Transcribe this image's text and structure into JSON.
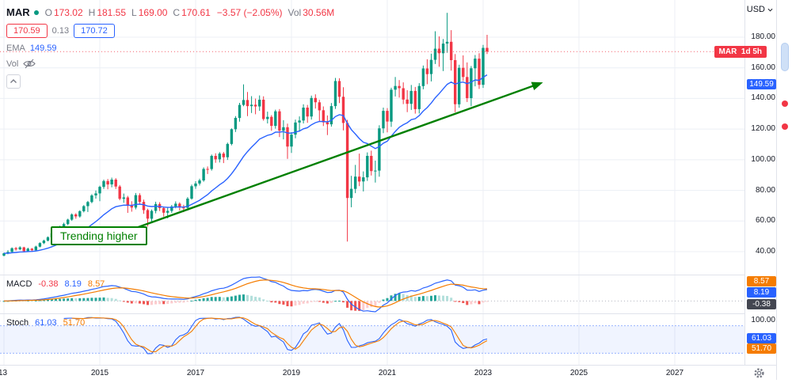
{
  "legend": {
    "ticker": "MAR",
    "o_label": "O",
    "o": "173.02",
    "h_label": "H",
    "h": "181.55",
    "l_label": "L",
    "l": "169.00",
    "c_label": "C",
    "c": "170.61",
    "change": "−3.57 (−2.05%)",
    "vol_label": "Vol",
    "vol": "30.56M",
    "bid": "170.59",
    "spread": "0.13",
    "ask": "170.72",
    "ema_label": "EMA",
    "ema_value": "149.59",
    "vol_indicator_label": "Vol"
  },
  "annotations": {
    "trend_label": "Trending higher"
  },
  "price_axis": {
    "currency": "USD",
    "labels": [
      "180.00",
      "160.00",
      "140.00",
      "120.00",
      "100.00",
      "80.00",
      "60.00",
      "40.00"
    ],
    "last_badge": "MAR  1d 5h",
    "ema_badge": "149.59"
  },
  "macd": {
    "label": "MACD",
    "hist": "-0.38",
    "macd": "8.19",
    "signal": "8.57"
  },
  "stoch": {
    "label": "Stoch",
    "k": "61.03",
    "d": "51.70",
    "scale_top": "100.00"
  },
  "time_axis": {
    "labels": [
      "13",
      "2015",
      "2017",
      "2019",
      "2021",
      "2023",
      "2025",
      "2027"
    ]
  },
  "icons": {
    "vol_hidden": "eye-slash-icon",
    "legend_collapse": "chevron-up-icon",
    "currency_menu": "chevron-down-icon",
    "axis_settings": "gear-icon"
  },
  "colors": {
    "up": "#089981",
    "down": "#f23645",
    "ema": "#2962ff",
    "macd_line": "#2962ff",
    "signal_line": "#f57c00",
    "stoch_k": "#2962ff",
    "stoch_d": "#f57c00",
    "hist_pos": "#26a69a",
    "hist_pos_weak": "#b2dfdb",
    "hist_neg": "#ef5350",
    "hist_neg_weak": "#fccbcd",
    "trend": "#008000",
    "grid": "#eceff5",
    "separator": "#e0e3eb"
  },
  "chart_data": {
    "type": "candlestick",
    "title": "MAR monthly candlestick chart with EMA, MACD and Stochastic",
    "interval": "1M",
    "start_year": 2013,
    "x_visible_range_years": [
      2013,
      2028.5
    ],
    "price_axis_range": [
      26,
      199
    ],
    "price_gridlines": [
      40,
      60,
      80,
      100,
      120,
      140,
      160,
      180
    ],
    "last_price": 170.61,
    "candles": [
      [
        37.4,
        39.4,
        36.9,
        38.9
      ],
      [
        38.9,
        41.0,
        38.3,
        39.8
      ],
      [
        39.8,
        42.8,
        39.5,
        42.2
      ],
      [
        42.2,
        43.1,
        40.6,
        41.5
      ],
      [
        41.5,
        43.5,
        40.9,
        42.8
      ],
      [
        42.8,
        43.2,
        39.6,
        40.3
      ],
      [
        40.3,
        42.6,
        39.8,
        41.9
      ],
      [
        41.9,
        42.4,
        39.9,
        40.9
      ],
      [
        40.9,
        43.9,
        40.5,
        43.3
      ],
      [
        43.3,
        46.1,
        42.8,
        45.6
      ],
      [
        45.6,
        47.8,
        44.9,
        47.2
      ],
      [
        47.2,
        49.9,
        46.7,
        49.4
      ],
      [
        49.4,
        52.6,
        48.6,
        52.0
      ],
      [
        52.0,
        54.2,
        50.6,
        53.5
      ],
      [
        53.5,
        56.9,
        52.8,
        56.2
      ],
      [
        56.2,
        58.9,
        55.0,
        58.0
      ],
      [
        58.0,
        61.5,
        57.2,
        60.9
      ],
      [
        60.9,
        65.0,
        60.1,
        64.3
      ],
      [
        64.3,
        65.1,
        61.5,
        63.0
      ],
      [
        63.0,
        67.0,
        62.2,
        66.4
      ],
      [
        66.4,
        70.4,
        65.6,
        69.7
      ],
      [
        69.7,
        73.1,
        65.9,
        72.4
      ],
      [
        72.4,
        77.5,
        71.6,
        76.7
      ],
      [
        76.7,
        79.9,
        74.6,
        78.0
      ],
      [
        78.0,
        83.1,
        72.9,
        82.3
      ],
      [
        82.3,
        87.0,
        80.9,
        86.1
      ],
      [
        86.1,
        87.4,
        80.7,
        83.9
      ],
      [
        83.9,
        88.3,
        82.0,
        87.0
      ],
      [
        87.0,
        88.0,
        80.9,
        82.5
      ],
      [
        82.5,
        83.5,
        73.6,
        74.5
      ],
      [
        74.5,
        77.9,
        71.9,
        75.4
      ],
      [
        75.4,
        76.4,
        65.3,
        69.9
      ],
      [
        69.9,
        72.9,
        66.1,
        68.8
      ],
      [
        68.8,
        78.3,
        67.6,
        76.9
      ],
      [
        76.9,
        78.1,
        70.8,
        72.5
      ],
      [
        72.5,
        74.0,
        64.7,
        67.1
      ],
      [
        67.1,
        68.0,
        56.4,
        61.5
      ],
      [
        61.5,
        67.5,
        58.9,
        66.6
      ],
      [
        66.6,
        72.6,
        65.0,
        71.1
      ],
      [
        71.1,
        72.3,
        66.5,
        68.4
      ],
      [
        68.4,
        69.4,
        62.9,
        65.4
      ],
      [
        65.4,
        68.9,
        61.7,
        66.6
      ],
      [
        66.6,
        70.5,
        65.3,
        69.5
      ],
      [
        69.5,
        72.8,
        68.3,
        71.3
      ],
      [
        71.3,
        72.2,
        66.8,
        68.8
      ],
      [
        68.8,
        70.6,
        65.8,
        68.6
      ],
      [
        68.6,
        75.6,
        66.8,
        74.6
      ],
      [
        74.6,
        83.8,
        73.9,
        82.7
      ],
      [
        82.7,
        86.0,
        81.0,
        84.5
      ],
      [
        84.5,
        87.6,
        83.2,
        86.5
      ],
      [
        86.5,
        95.0,
        85.6,
        94.0
      ],
      [
        94.0,
        95.6,
        90.7,
        93.9
      ],
      [
        93.9,
        103.4,
        92.9,
        102.5
      ],
      [
        102.5,
        104.2,
        98.0,
        100.3
      ],
      [
        100.3,
        105.0,
        98.2,
        104.0
      ],
      [
        104.0,
        105.1,
        97.8,
        101.6
      ],
      [
        101.6,
        111.2,
        99.9,
        110.3
      ],
      [
        110.3,
        120.5,
        109.4,
        119.9
      ],
      [
        119.9,
        128.5,
        118.1,
        127.3
      ],
      [
        127.3,
        137.1,
        124.9,
        135.8
      ],
      [
        135.8,
        149.2,
        134.9,
        139.0
      ],
      [
        139.0,
        144.2,
        128.5,
        135.0
      ],
      [
        135.0,
        141.5,
        130.5,
        135.9
      ],
      [
        135.9,
        139.9,
        129.7,
        134.8
      ],
      [
        134.8,
        142.0,
        131.9,
        139.2
      ],
      [
        139.2,
        141.4,
        125.5,
        126.6
      ],
      [
        126.6,
        131.4,
        123.7,
        128.0
      ],
      [
        128.0,
        129.1,
        118.9,
        122.1
      ],
      [
        122.1,
        132.7,
        120.3,
        131.6
      ],
      [
        131.6,
        133.1,
        114.8,
        119.0
      ],
      [
        119.0,
        125.8,
        113.3,
        121.2
      ],
      [
        121.2,
        123.6,
        100.6,
        108.6
      ],
      [
        108.6,
        118.0,
        104.4,
        116.4
      ],
      [
        116.4,
        126.2,
        114.0,
        124.3
      ],
      [
        124.3,
        128.3,
        118.3,
        125.6
      ],
      [
        125.6,
        136.2,
        123.7,
        134.0
      ],
      [
        134.0,
        135.8,
        124.1,
        128.2
      ],
      [
        128.2,
        141.9,
        126.2,
        140.3
      ],
      [
        140.3,
        142.7,
        133.4,
        137.5
      ],
      [
        137.5,
        139.1,
        125.1,
        132.3
      ],
      [
        132.3,
        134.8,
        122.0,
        124.4
      ],
      [
        124.4,
        128.9,
        116.1,
        123.1
      ],
      [
        123.1,
        137.0,
        121.6,
        135.0
      ],
      [
        135.0,
        153.4,
        133.2,
        151.4
      ],
      [
        151.4,
        153.2,
        137.0,
        141.1
      ],
      [
        141.1,
        147.3,
        119.2,
        124.0
      ],
      [
        124.0,
        126.0,
        46.6,
        75.0
      ],
      [
        75.0,
        89.5,
        69.0,
        81.0
      ],
      [
        81.0,
        96.6,
        78.2,
        89.0
      ],
      [
        89.0,
        104.0,
        82.8,
        85.8
      ],
      [
        85.8,
        92.4,
        79.3,
        88.5
      ],
      [
        88.5,
        104.8,
        86.2,
        102.5
      ],
      [
        102.5,
        105.9,
        89.7,
        92.6
      ],
      [
        92.6,
        99.4,
        85.1,
        92.9
      ],
      [
        92.9,
        122.5,
        88.9,
        120.5
      ],
      [
        120.5,
        134.0,
        117.4,
        131.9
      ],
      [
        131.9,
        133.7,
        117.9,
        124.9
      ],
      [
        124.9,
        147.0,
        121.4,
        145.7
      ],
      [
        145.7,
        154.0,
        141.3,
        148.1
      ],
      [
        148.1,
        152.0,
        140.6,
        146.7
      ],
      [
        146.7,
        150.5,
        136.3,
        139.3
      ],
      [
        139.3,
        145.4,
        131.1,
        136.5
      ],
      [
        136.5,
        148.8,
        132.5,
        144.9
      ],
      [
        144.9,
        147.5,
        130.1,
        133.0
      ],
      [
        133.0,
        150.0,
        130.2,
        148.1
      ],
      [
        148.1,
        161.5,
        146.0,
        159.6
      ],
      [
        159.6,
        165.6,
        149.3,
        155.9
      ],
      [
        155.9,
        169.3,
        151.1,
        165.2
      ],
      [
        165.2,
        183.9,
        162.5,
        172.5
      ],
      [
        172.5,
        180.5,
        160.7,
        169.5
      ],
      [
        169.5,
        178.8,
        157.9,
        175.8
      ],
      [
        175.8,
        195.9,
        169.8,
        177.0
      ],
      [
        177.0,
        184.6,
        158.2,
        165.0
      ],
      [
        165.0,
        169.0,
        131.0,
        136.2
      ],
      [
        136.2,
        162.0,
        133.9,
        160.0
      ],
      [
        160.0,
        168.1,
        151.5,
        154.0
      ],
      [
        154.0,
        163.5,
        137.7,
        140.2
      ],
      [
        140.2,
        161.2,
        135.0,
        159.7
      ],
      [
        159.7,
        168.4,
        147.9,
        166.0
      ],
      [
        166.0,
        169.5,
        146.2,
        148.9
      ],
      [
        148.9,
        175.0,
        146.9,
        173.0
      ],
      [
        173.02,
        181.55,
        169.0,
        170.61
      ]
    ],
    "overlays": [
      {
        "name": "EMA",
        "period": 20,
        "color": "#2962ff",
        "last_value": 149.59
      }
    ],
    "indicators": [
      {
        "name": "MACD",
        "fast": 12,
        "slow": 26,
        "signal": 9,
        "last": {
          "hist": -0.38,
          "macd": 8.19,
          "signal": 8.57
        }
      },
      {
        "name": "Stoch",
        "k": 14,
        "k_smooth": 3,
        "d": 3,
        "band": [
          20,
          80
        ],
        "last": {
          "k": 61.03,
          "d": 51.7
        }
      }
    ],
    "trendline": {
      "points": [
        [
          2015.4,
          51.5
        ],
        [
          2024.25,
          150.5
        ]
      ],
      "color": "#008000",
      "label": "Trending higher"
    },
    "volume_indicator_hidden": true
  }
}
